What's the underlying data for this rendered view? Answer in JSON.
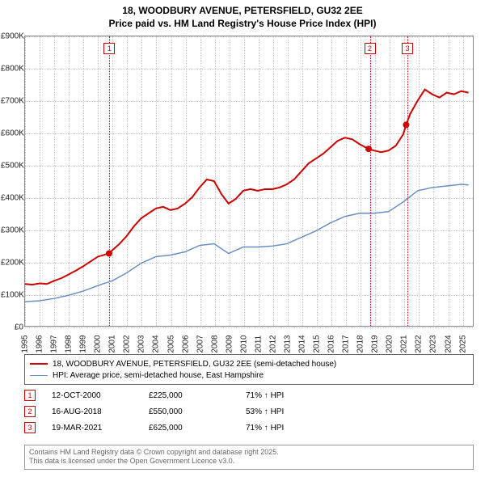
{
  "title_line1": "18, WOODBURY AVENUE, PETERSFIELD, GU32 2EE",
  "title_line2": "Price paid vs. HM Land Registry's House Price Index (HPI)",
  "chart": {
    "type": "line",
    "x_start_year": 1995,
    "x_end_year": 2025.8,
    "x_ticks": [
      1995,
      1996,
      1997,
      1998,
      1999,
      2000,
      2001,
      2002,
      2003,
      2004,
      2005,
      2006,
      2007,
      2008,
      2009,
      2010,
      2011,
      2012,
      2013,
      2014,
      2015,
      2016,
      2017,
      2018,
      2019,
      2020,
      2021,
      2022,
      2023,
      2024,
      2025
    ],
    "y_min": 0,
    "y_max": 900000,
    "y_ticks": [
      {
        "v": 0,
        "label": "£0"
      },
      {
        "v": 100000,
        "label": "£100K"
      },
      {
        "v": 200000,
        "label": "£200K"
      },
      {
        "v": 300000,
        "label": "£300K"
      },
      {
        "v": 400000,
        "label": "£400K"
      },
      {
        "v": 500000,
        "label": "£500K"
      },
      {
        "v": 600000,
        "label": "£600K"
      },
      {
        "v": 700000,
        "label": "£700K"
      },
      {
        "v": 800000,
        "label": "£800K"
      },
      {
        "v": 900000,
        "label": "£900K"
      }
    ],
    "grid_color": "#cccccc",
    "background_color": "#ffffff",
    "series": [
      {
        "name": "property",
        "color": "#cc0000",
        "width": 2,
        "data": [
          [
            1995,
            130000
          ],
          [
            1995.5,
            128000
          ],
          [
            1996,
            132000
          ],
          [
            1996.5,
            130000
          ],
          [
            1997,
            140000
          ],
          [
            1997.5,
            148000
          ],
          [
            1998,
            160000
          ],
          [
            1998.5,
            172000
          ],
          [
            1999,
            185000
          ],
          [
            1999.5,
            200000
          ],
          [
            2000,
            215000
          ],
          [
            2000.78,
            225000
          ],
          [
            2001,
            235000
          ],
          [
            2001.5,
            255000
          ],
          [
            2002,
            280000
          ],
          [
            2002.5,
            310000
          ],
          [
            2003,
            335000
          ],
          [
            2003.5,
            350000
          ],
          [
            2004,
            365000
          ],
          [
            2004.5,
            370000
          ],
          [
            2005,
            360000
          ],
          [
            2005.5,
            365000
          ],
          [
            2006,
            380000
          ],
          [
            2006.5,
            400000
          ],
          [
            2007,
            430000
          ],
          [
            2007.5,
            455000
          ],
          [
            2008,
            450000
          ],
          [
            2008.5,
            410000
          ],
          [
            2009,
            380000
          ],
          [
            2009.5,
            395000
          ],
          [
            2010,
            420000
          ],
          [
            2010.5,
            425000
          ],
          [
            2011,
            420000
          ],
          [
            2011.5,
            425000
          ],
          [
            2012,
            425000
          ],
          [
            2012.5,
            430000
          ],
          [
            2013,
            440000
          ],
          [
            2013.5,
            455000
          ],
          [
            2014,
            480000
          ],
          [
            2014.5,
            505000
          ],
          [
            2015,
            520000
          ],
          [
            2015.5,
            535000
          ],
          [
            2016,
            555000
          ],
          [
            2016.5,
            575000
          ],
          [
            2017,
            585000
          ],
          [
            2017.5,
            580000
          ],
          [
            2018,
            565000
          ],
          [
            2018.63,
            550000
          ],
          [
            2019,
            545000
          ],
          [
            2019.5,
            540000
          ],
          [
            2020,
            545000
          ],
          [
            2020.5,
            560000
          ],
          [
            2021,
            595000
          ],
          [
            2021.21,
            625000
          ],
          [
            2021.5,
            660000
          ],
          [
            2022,
            700000
          ],
          [
            2022.5,
            735000
          ],
          [
            2023,
            720000
          ],
          [
            2023.5,
            710000
          ],
          [
            2024,
            725000
          ],
          [
            2024.5,
            720000
          ],
          [
            2025,
            730000
          ],
          [
            2025.5,
            725000
          ]
        ]
      },
      {
        "name": "hpi",
        "color": "#6a8fc5",
        "width": 1.5,
        "data": [
          [
            1995,
            75000
          ],
          [
            1996,
            78000
          ],
          [
            1997,
            85000
          ],
          [
            1998,
            95000
          ],
          [
            1999,
            108000
          ],
          [
            2000,
            125000
          ],
          [
            2001,
            140000
          ],
          [
            2002,
            165000
          ],
          [
            2003,
            195000
          ],
          [
            2004,
            215000
          ],
          [
            2005,
            220000
          ],
          [
            2006,
            230000
          ],
          [
            2007,
            250000
          ],
          [
            2008,
            255000
          ],
          [
            2009,
            225000
          ],
          [
            2010,
            245000
          ],
          [
            2011,
            245000
          ],
          [
            2012,
            248000
          ],
          [
            2013,
            255000
          ],
          [
            2014,
            275000
          ],
          [
            2015,
            295000
          ],
          [
            2016,
            320000
          ],
          [
            2017,
            340000
          ],
          [
            2018,
            350000
          ],
          [
            2019,
            350000
          ],
          [
            2020,
            355000
          ],
          [
            2021,
            385000
          ],
          [
            2022,
            420000
          ],
          [
            2023,
            430000
          ],
          [
            2024,
            435000
          ],
          [
            2025,
            440000
          ],
          [
            2025.5,
            438000
          ]
        ]
      }
    ],
    "marker_year_positions": [
      2000.78,
      2018.63,
      2021.21
    ],
    "marker_labels": [
      "1",
      "2",
      "3"
    ],
    "sale_points": [
      [
        2000.78,
        225000
      ],
      [
        2018.63,
        550000
      ],
      [
        2021.21,
        625000
      ]
    ]
  },
  "legend": [
    {
      "color": "#cc0000",
      "width": 2,
      "label": "18, WOODBURY AVENUE, PETERSFIELD, GU32 2EE (semi-detached house)"
    },
    {
      "color": "#6a8fc5",
      "width": 1.5,
      "label": "HPI: Average price, semi-detached house, East Hampshire"
    }
  ],
  "events": [
    {
      "n": "1",
      "date": "12-OCT-2000",
      "price": "£225,000",
      "hpi": "71% ↑ HPI"
    },
    {
      "n": "2",
      "date": "16-AUG-2018",
      "price": "£550,000",
      "hpi": "53% ↑ HPI"
    },
    {
      "n": "3",
      "date": "19-MAR-2021",
      "price": "£625,000",
      "hpi": "71% ↑ HPI"
    }
  ],
  "footer_line1": "Contains HM Land Registry data © Crown copyright and database right 2025.",
  "footer_line2": "This data is licensed under the Open Government Licence v3.0."
}
